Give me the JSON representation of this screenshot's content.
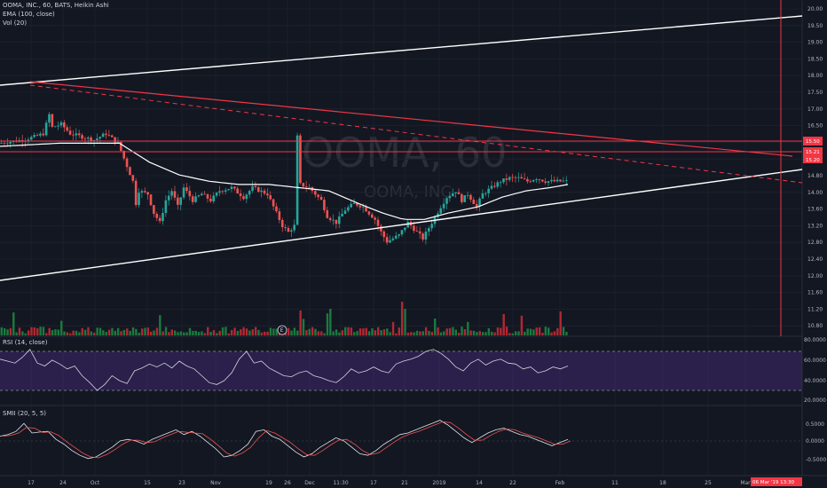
{
  "legend": {
    "main_title": "OOMA, INC., 60, BATS, Heikin Ashi",
    "ema_label": "EMA (100, close)",
    "vol_label": "Vol (20)",
    "rsi_label": "RSI (14, close)",
    "smii_label": "SMII (20, 5, 5)"
  },
  "watermark": {
    "symbol": "OOMA, 60",
    "name": "OOMA, INC."
  },
  "badges": {
    "price_15_50": "15.50",
    "price_15_21": "15.21",
    "price_15_20": "15.20",
    "date_badge": "06 Mar '19  13:30"
  },
  "colors": {
    "background": "#131722",
    "up": "#26a69a",
    "down": "#ef5350",
    "red_line": "#f23645",
    "ema": "#ffffff",
    "rsi_band": "#673ab7",
    "vol_up": "#1b7a3e",
    "vol_down": "#b22833"
  },
  "chart_data": [
    {
      "type": "candlestick",
      "panel": "price",
      "title": "OOMA, INC., 60, BATS, Heikin Ashi",
      "y_axis_ticks": [
        "20.00",
        "19.50",
        "19.00",
        "18.50",
        "18.00",
        "17.50",
        "17.00",
        "16.50",
        "16.00",
        "15.50",
        "14.80",
        "14.00",
        "13.60",
        "13.20",
        "12.80",
        "12.40",
        "12.00",
        "11.60",
        "11.20",
        "10.80"
      ],
      "x_axis_ticks": [
        "17",
        "24",
        "Oct",
        "15",
        "23",
        "Nov",
        "19",
        "26",
        "Dec",
        "11:30",
        "17",
        "21",
        "2019",
        "14",
        "22",
        "Feb",
        "11",
        "18",
        "25",
        "Mar"
      ],
      "ylim": [
        10.6,
        20.1
      ],
      "price_path": [
        [
          0,
          16.4
        ],
        [
          8,
          16.5
        ],
        [
          12,
          16.6
        ],
        [
          15,
          16.7
        ],
        [
          17,
          17.3
        ],
        [
          18,
          16.9
        ],
        [
          21,
          17.0
        ],
        [
          24,
          16.7
        ],
        [
          28,
          16.6
        ],
        [
          32,
          16.5
        ],
        [
          36,
          16.7
        ],
        [
          40,
          16.4
        ],
        [
          45,
          15.2
        ],
        [
          46,
          14.5
        ],
        [
          47,
          14.9
        ],
        [
          50,
          14.8
        ],
        [
          52,
          14.2
        ],
        [
          54,
          13.9
        ],
        [
          56,
          14.6
        ],
        [
          58,
          14.9
        ],
        [
          60,
          14.4
        ],
        [
          62,
          15.0
        ],
        [
          65,
          14.6
        ],
        [
          68,
          14.8
        ],
        [
          71,
          14.6
        ],
        [
          74,
          14.9
        ],
        [
          78,
          15.0
        ],
        [
          82,
          14.7
        ],
        [
          85,
          15.0
        ],
        [
          90,
          14.8
        ],
        [
          93,
          14.2
        ],
        [
          95,
          13.8
        ],
        [
          97,
          13.6
        ],
        [
          99,
          13.8
        ],
        [
          100,
          16.6
        ],
        [
          101,
          15.1
        ],
        [
          104,
          15.0
        ],
        [
          108,
          14.6
        ],
        [
          110,
          14.1
        ],
        [
          113,
          13.9
        ],
        [
          116,
          14.3
        ],
        [
          119,
          14.5
        ],
        [
          122,
          14.4
        ],
        [
          126,
          14.0
        ],
        [
          128,
          13.6
        ],
        [
          130,
          13.3
        ],
        [
          132,
          13.4
        ],
        [
          134,
          13.5
        ],
        [
          137,
          13.9
        ],
        [
          140,
          13.6
        ],
        [
          142,
          13.4
        ],
        [
          145,
          13.9
        ],
        [
          148,
          14.4
        ],
        [
          150,
          14.7
        ],
        [
          153,
          14.9
        ],
        [
          155,
          14.6
        ],
        [
          157,
          14.8
        ],
        [
          160,
          14.4
        ],
        [
          162,
          14.8
        ],
        [
          165,
          15.0
        ],
        [
          168,
          15.2
        ],
        [
          171,
          15.3
        ],
        [
          174,
          15.3
        ],
        [
          177,
          15.2
        ],
        [
          180,
          15.3
        ],
        [
          183,
          15.2
        ],
        [
          186,
          15.2
        ],
        [
          190,
          15.2
        ]
      ],
      "ema_path": [
        [
          0,
          16.3
        ],
        [
          20,
          16.4
        ],
        [
          40,
          16.4
        ],
        [
          50,
          15.8
        ],
        [
          60,
          15.4
        ],
        [
          70,
          15.2
        ],
        [
          80,
          15.1
        ],
        [
          90,
          15.1
        ],
        [
          100,
          15.0
        ],
        [
          110,
          14.9
        ],
        [
          120,
          14.5
        ],
        [
          128,
          14.2
        ],
        [
          135,
          14.0
        ],
        [
          142,
          14.0
        ],
        [
          150,
          14.2
        ],
        [
          160,
          14.4
        ],
        [
          168,
          14.7
        ],
        [
          176,
          14.9
        ],
        [
          184,
          15.0
        ],
        [
          190,
          15.1
        ]
      ],
      "lines": [
        {
          "name": "upper white channel",
          "from": [
            "x0",
            17.3
          ],
          "to": [
            "x-right",
            19.8
          ]
        },
        {
          "name": "lower white channel",
          "from": [
            "x0",
            11.9
          ],
          "to": [
            "x-right",
            14.5
          ]
        },
        {
          "name": "solid red trendline",
          "from": [
            "Sep 17",
            17.3
          ],
          "to": [
            "Mar",
            15.1
          ]
        },
        {
          "name": "dashed red trendline",
          "from": [
            "Sep 17",
            17.2
          ],
          "to": [
            "Mar",
            14.2
          ]
        },
        {
          "name": "horizontal resistance",
          "y": 15.5
        },
        {
          "name": "horizontal level",
          "y": 15.2
        }
      ]
    },
    {
      "type": "bar",
      "panel": "volume",
      "title": "Vol (20)",
      "note": "volume bars at bottom of price panel; green = up, red = down"
    },
    {
      "type": "line",
      "panel": "rsi",
      "title": "RSI (14, close)",
      "y_axis_ticks": [
        "80.0000",
        "60.0000",
        "40.0000",
        "20.0000"
      ],
      "ylim": [
        15,
        85
      ],
      "band": [
        30,
        70
      ],
      "values": [
        62,
        60,
        58,
        64,
        72,
        58,
        55,
        61,
        57,
        52,
        55,
        45,
        38,
        30,
        36,
        45,
        40,
        37,
        50,
        53,
        57,
        54,
        58,
        53,
        60,
        55,
        52,
        45,
        38,
        36,
        40,
        48,
        62,
        70,
        58,
        60,
        53,
        49,
        45,
        44,
        48,
        50,
        45,
        43,
        40,
        38,
        44,
        52,
        48,
        50,
        54,
        50,
        48,
        57,
        60,
        62,
        65,
        70,
        72,
        68,
        62,
        54,
        50,
        58,
        62,
        56,
        60,
        62,
        58,
        57,
        52,
        54,
        48,
        50,
        54,
        52,
        55
      ]
    },
    {
      "type": "line",
      "panel": "smii",
      "title": "SMII (20, 5, 5)",
      "y_axis_ticks": [
        "0.5000",
        "0.0000",
        "-0.5000"
      ],
      "ylim": [
        -0.7,
        0.75
      ],
      "values": [
        0.15,
        0.2,
        0.3,
        0.55,
        0.25,
        0.28,
        0.3,
        0.05,
        -0.1,
        -0.3,
        -0.45,
        -0.55,
        -0.5,
        -0.35,
        -0.2,
        0.0,
        0.05,
        0.0,
        -0.1,
        0.05,
        0.15,
        0.25,
        0.35,
        0.2,
        0.3,
        0.15,
        -0.05,
        -0.25,
        -0.5,
        -0.45,
        -0.3,
        -0.1,
        0.3,
        0.35,
        0.15,
        0.05,
        -0.15,
        -0.35,
        -0.5,
        -0.4,
        -0.2,
        -0.05,
        0.1,
        0.0,
        -0.2,
        -0.4,
        -0.45,
        -0.3,
        -0.1,
        0.05,
        0.2,
        0.25,
        0.35,
        0.45,
        0.55,
        0.65,
        0.5,
        0.3,
        0.1,
        -0.05,
        0.1,
        0.25,
        0.35,
        0.4,
        0.3,
        0.2,
        0.15,
        0.05,
        -0.05,
        -0.15,
        -0.05,
        0.05
      ]
    }
  ]
}
